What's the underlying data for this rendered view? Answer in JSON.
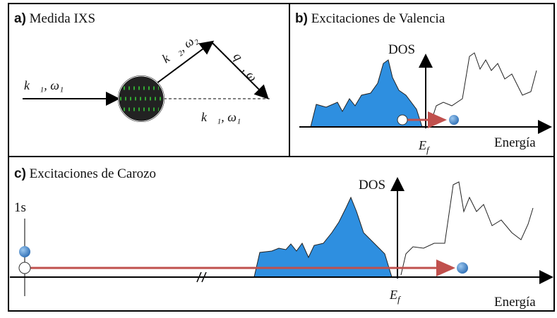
{
  "panels": [
    {
      "label": "a)",
      "title": "Medida IXS",
      "annotations": [
        "k⃗₁, ω₁",
        "k⃗₂, ω₂",
        "q⃗, ω",
        "k⃗₁, ω₁"
      ]
    },
    {
      "label": "b)",
      "title": "Excitaciones de Valencia",
      "y_axis": "DOS",
      "x_axis": "Energía",
      "fermi": {
        "main": "E",
        "sub": "f"
      }
    },
    {
      "label": "c)",
      "title": "Excitaciones de Carozo",
      "y_axis": "DOS",
      "x_axis": "Energía",
      "fermi": {
        "main": "E",
        "sub": "f"
      },
      "level": "1s"
    }
  ]
}
